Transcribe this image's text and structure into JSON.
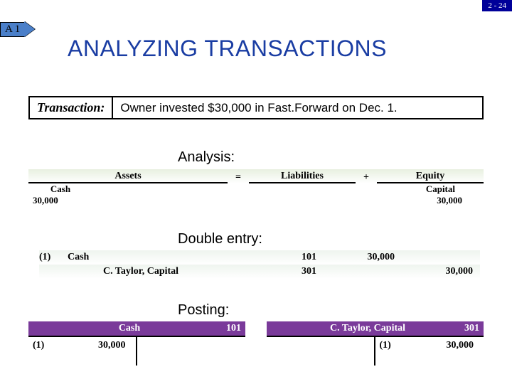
{
  "page_number": "2 - 24",
  "tag": "A 1",
  "title": "ANALYZING TRANSACTIONS",
  "transaction": {
    "label": "Transaction:",
    "text": "Owner invested $30,000 in Fast.Forward on Dec. 1."
  },
  "sections": {
    "analysis": "Analysis:",
    "double_entry": "Double entry:",
    "posting": "Posting:"
  },
  "analysis": {
    "headers": {
      "assets": "Assets",
      "eq": "=",
      "liabilities": "Liabilities",
      "plus": "+",
      "equity": "Equity"
    },
    "sub": {
      "cash": "Cash",
      "capital": "Capital"
    },
    "values": {
      "cash": "30,000",
      "capital": "30,000"
    }
  },
  "double_entry": {
    "row1": {
      "idx": "(1)",
      "account": "Cash",
      "number": "101",
      "debit": "30,000",
      "credit": ""
    },
    "row2": {
      "idx": "",
      "account": "C. Taylor, Capital",
      "number": "301",
      "debit": "",
      "credit": "30,000"
    }
  },
  "posting": {
    "left": {
      "title": "Cash",
      "number": "101",
      "ref": "(1)",
      "amount": "30,000",
      "side": "debit"
    },
    "right": {
      "title": "C. Taylor, Capital",
      "number": "301",
      "ref": "(1)",
      "amount": "30,000",
      "side": "credit"
    }
  },
  "colors": {
    "brand_blue": "#000099",
    "title_blue": "#1a3da3",
    "tag_blue": "#4a7fc9",
    "posting_purple": "#7a3a9a",
    "green_tint": "#e8f0e0"
  }
}
